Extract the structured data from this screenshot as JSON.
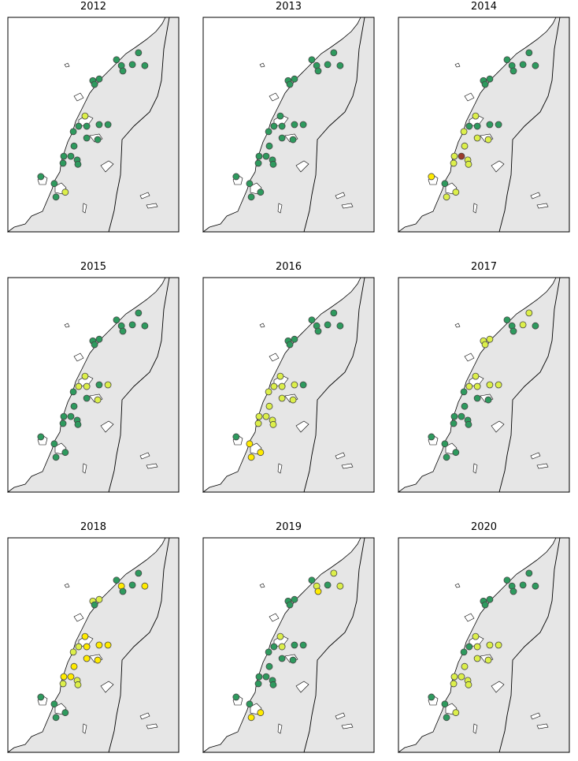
{
  "chart_data": [
    {
      "type": "map",
      "title": "2012",
      "xlim": [
        10,
        17
      ],
      "ylim": [
        64.5,
        68.5
      ],
      "lon": [
        15.35,
        14.45,
        15.1,
        14.65,
        15.61,
        14.71,
        13.48,
        13.74,
        13.55,
        13.16,
        13.23,
        12.9,
        13.74,
        14.1,
        12.68,
        13.23,
        13.68,
        12.71,
        12.29,
        12.58,
        12.84,
        12.26,
        12.87,
        11.35,
        11.9,
        12.35,
        11.97
      ],
      "lat": [
        67.84,
        67.71,
        67.62,
        67.6,
        67.6,
        67.5,
        67.32,
        67.35,
        67.25,
        66.66,
        66.47,
        66.47,
        66.5,
        66.5,
        66.37,
        66.25,
        66.22,
        66.1,
        65.91,
        65.91,
        65.84,
        65.78,
        65.76,
        65.53,
        65.4,
        65.24,
        65.15
      ],
      "colors": [
        "#2e9a5e",
        "#2e9a5e",
        "#2e9a5e",
        "#2e9a5e",
        "#2e9a5e",
        "#2e9a5e",
        "#2e9a5e",
        "#2e9a5e",
        "#2e9a5e",
        "#dcef4a",
        "#2e9a5e",
        "#2e9a5e",
        "#2e9a5e",
        "#2e9a5e",
        "#2e9a5e",
        "#2e9a5e",
        "#2e9a5e",
        "#2e9a5e",
        "#2e9a5e",
        "#2e9a5e",
        "#2e9a5e",
        "#2e9a5e",
        "#2e9a5e",
        "#2e9a5e",
        "#2e9a5e",
        "#dcef4a",
        "#2e9a5e"
      ]
    },
    {
      "type": "map",
      "title": "2013",
      "xlim": [
        10,
        17
      ],
      "ylim": [
        64.5,
        68.5
      ],
      "lon": [
        15.35,
        14.45,
        15.1,
        14.65,
        15.61,
        14.71,
        13.48,
        13.74,
        13.55,
        13.16,
        13.23,
        12.9,
        13.74,
        14.1,
        12.68,
        13.23,
        13.68,
        12.71,
        12.29,
        12.58,
        12.84,
        12.26,
        12.87,
        11.35,
        11.9,
        12.35,
        11.97
      ],
      "lat": [
        67.84,
        67.71,
        67.62,
        67.6,
        67.6,
        67.5,
        67.32,
        67.35,
        67.25,
        66.66,
        66.47,
        66.47,
        66.5,
        66.5,
        66.37,
        66.25,
        66.22,
        66.1,
        65.91,
        65.91,
        65.84,
        65.78,
        65.76,
        65.53,
        65.4,
        65.24,
        65.15
      ],
      "colors": [
        "#2e9a5e",
        "#2e9a5e",
        "#2e9a5e",
        "#2e9a5e",
        "#2e9a5e",
        "#2e9a5e",
        "#2e9a5e",
        "#2e9a5e",
        "#2e9a5e",
        "#2e9a5e",
        "#2e9a5e",
        "#2e9a5e",
        "#2e9a5e",
        "#2e9a5e",
        "#2e9a5e",
        "#2e9a5e",
        "#2e9a5e",
        "#2e9a5e",
        "#2e9a5e",
        "#2e9a5e",
        "#2e9a5e",
        "#2e9a5e",
        "#2e9a5e",
        "#2e9a5e",
        "#2e9a5e",
        "#2e9a5e",
        "#2e9a5e"
      ]
    },
    {
      "type": "map",
      "title": "2014",
      "xlim": [
        10,
        17
      ],
      "ylim": [
        64.5,
        68.5
      ],
      "lon": [
        15.35,
        14.45,
        15.1,
        14.65,
        15.61,
        14.71,
        13.48,
        13.74,
        13.55,
        13.16,
        13.23,
        12.9,
        13.74,
        14.1,
        12.68,
        13.23,
        13.68,
        12.71,
        12.29,
        12.58,
        12.84,
        12.26,
        12.87,
        11.35,
        11.9,
        12.35,
        11.97
      ],
      "lat": [
        67.84,
        67.71,
        67.62,
        67.6,
        67.6,
        67.5,
        67.32,
        67.35,
        67.25,
        66.66,
        66.47,
        66.47,
        66.5,
        66.5,
        66.37,
        66.25,
        66.22,
        66.1,
        65.91,
        65.91,
        65.84,
        65.78,
        65.76,
        65.53,
        65.4,
        65.24,
        65.15
      ],
      "colors": [
        "#2e9a5e",
        "#2e9a5e",
        "#2e9a5e",
        "#2e9a5e",
        "#2e9a5e",
        "#2e9a5e",
        "#2e9a5e",
        "#2e9a5e",
        "#2e9a5e",
        "#dcef4a",
        "#2e9a5e",
        "#2e9a5e",
        "#2e9a5e",
        "#2e9a5e",
        "#dcef4a",
        "#dcef4a",
        "#dcef4a",
        "#dcef4a",
        "#dcef4a",
        "#9b3b2a",
        "#dcef4a",
        "#dcef4a",
        "#dcef4a",
        "#ffeb00",
        "#2e9a5e",
        "#dcef4a",
        "#dcef4a"
      ]
    },
    {
      "type": "map",
      "title": "2015",
      "xlim": [
        10,
        17
      ],
      "ylim": [
        64.5,
        68.5
      ],
      "lon": [
        15.35,
        14.45,
        15.1,
        14.65,
        15.61,
        14.71,
        13.48,
        13.74,
        13.55,
        13.16,
        13.23,
        12.9,
        13.74,
        14.1,
        12.68,
        13.23,
        13.68,
        12.71,
        12.29,
        12.58,
        12.84,
        12.26,
        12.87,
        11.35,
        11.9,
        12.35,
        11.97
      ],
      "lat": [
        67.84,
        67.71,
        67.62,
        67.6,
        67.6,
        67.5,
        67.32,
        67.35,
        67.25,
        66.66,
        66.47,
        66.47,
        66.5,
        66.5,
        66.37,
        66.25,
        66.22,
        66.1,
        65.91,
        65.91,
        65.84,
        65.78,
        65.76,
        65.53,
        65.4,
        65.24,
        65.15
      ],
      "colors": [
        "#2e9a5e",
        "#2e9a5e",
        "#2e9a5e",
        "#2e9a5e",
        "#2e9a5e",
        "#2e9a5e",
        "#2e9a5e",
        "#2e9a5e",
        "#2e9a5e",
        "#dcef4a",
        "#dcef4a",
        "#dcef4a",
        "#2e9a5e",
        "#dcef4a",
        "#2e9a5e",
        "#2e9a5e",
        "#dcef4a",
        "#2e9a5e",
        "#2e9a5e",
        "#2e9a5e",
        "#2e9a5e",
        "#2e9a5e",
        "#2e9a5e",
        "#2e9a5e",
        "#2e9a5e",
        "#2e9a5e",
        "#2e9a5e"
      ]
    },
    {
      "type": "map",
      "title": "2016",
      "xlim": [
        10,
        17
      ],
      "ylim": [
        64.5,
        68.5
      ],
      "lon": [
        15.35,
        14.45,
        15.1,
        14.65,
        15.61,
        14.71,
        13.48,
        13.74,
        13.55,
        13.16,
        13.23,
        12.9,
        13.74,
        14.1,
        12.68,
        13.23,
        13.68,
        12.71,
        12.29,
        12.58,
        12.84,
        12.26,
        12.87,
        11.35,
        11.9,
        12.35,
        11.97
      ],
      "lat": [
        67.84,
        67.71,
        67.62,
        67.6,
        67.6,
        67.5,
        67.32,
        67.35,
        67.25,
        66.66,
        66.47,
        66.47,
        66.5,
        66.5,
        66.37,
        66.25,
        66.22,
        66.1,
        65.91,
        65.91,
        65.84,
        65.78,
        65.76,
        65.53,
        65.4,
        65.24,
        65.15
      ],
      "colors": [
        "#2e9a5e",
        "#2e9a5e",
        "#2e9a5e",
        "#2e9a5e",
        "#2e9a5e",
        "#2e9a5e",
        "#2e9a5e",
        "#2e9a5e",
        "#2e9a5e",
        "#dcef4a",
        "#dcef4a",
        "#dcef4a",
        "#dcef4a",
        "#2e9a5e",
        "#dcef4a",
        "#dcef4a",
        "#dcef4a",
        "#dcef4a",
        "#dcef4a",
        "#dcef4a",
        "#dcef4a",
        "#dcef4a",
        "#dcef4a",
        "#2e9a5e",
        "#ffeb00",
        "#ffeb00",
        "#ffeb00"
      ]
    },
    {
      "type": "map",
      "title": "2017",
      "xlim": [
        10,
        17
      ],
      "ylim": [
        64.5,
        68.5
      ],
      "lon": [
        15.35,
        14.45,
        15.1,
        14.65,
        15.61,
        14.71,
        13.48,
        13.74,
        13.55,
        13.16,
        13.23,
        12.9,
        13.74,
        14.1,
        12.68,
        13.23,
        13.68,
        12.71,
        12.29,
        12.58,
        12.84,
        12.26,
        12.87,
        11.35,
        11.9,
        12.35,
        11.97
      ],
      "lat": [
        67.84,
        67.71,
        67.62,
        67.6,
        67.6,
        67.5,
        67.32,
        67.35,
        67.25,
        66.66,
        66.47,
        66.47,
        66.5,
        66.5,
        66.37,
        66.25,
        66.22,
        66.1,
        65.91,
        65.91,
        65.84,
        65.78,
        65.76,
        65.53,
        65.4,
        65.24,
        65.15
      ],
      "colors": [
        "#dcef4a",
        "#2e9a5e",
        "#dcef4a",
        "#2e9a5e",
        "#2e9a5e",
        "#2e9a5e",
        "#dcef4a",
        "#dcef4a",
        "#dcef4a",
        "#dcef4a",
        "#dcef4a",
        "#dcef4a",
        "#dcef4a",
        "#dcef4a",
        "#2e9a5e",
        "#2e9a5e",
        "#2e9a5e",
        "#2e9a5e",
        "#2e9a5e",
        "#2e9a5e",
        "#2e9a5e",
        "#2e9a5e",
        "#2e9a5e",
        "#2e9a5e",
        "#2e9a5e",
        "#2e9a5e",
        "#2e9a5e"
      ]
    },
    {
      "type": "map",
      "title": "2018",
      "xlim": [
        10,
        17
      ],
      "ylim": [
        64.5,
        68.5
      ],
      "lon": [
        15.35,
        14.45,
        15.1,
        14.65,
        15.61,
        14.71,
        13.48,
        13.74,
        13.55,
        13.16,
        13.23,
        12.9,
        13.74,
        14.1,
        12.68,
        13.23,
        13.68,
        12.71,
        12.29,
        12.58,
        12.84,
        12.26,
        12.87,
        11.35,
        11.9,
        12.35,
        11.97
      ],
      "lat": [
        67.84,
        67.71,
        67.62,
        67.6,
        67.6,
        67.5,
        67.32,
        67.35,
        67.25,
        66.66,
        66.47,
        66.47,
        66.5,
        66.5,
        66.37,
        66.25,
        66.22,
        66.1,
        65.91,
        65.91,
        65.84,
        65.78,
        65.76,
        65.53,
        65.4,
        65.24,
        65.15
      ],
      "colors": [
        "#2e9a5e",
        "#2e9a5e",
        "#2e9a5e",
        "#ffeb00",
        "#ffeb00",
        "#2e9a5e",
        "#dcef4a",
        "#dcef4a",
        "#2e9a5e",
        "#ffeb00",
        "#ffeb00",
        "#dcef4a",
        "#ffeb00",
        "#ffeb00",
        "#dcef4a",
        "#ffeb00",
        "#ffeb00",
        "#ffeb00",
        "#ffeb00",
        "#ffeb00",
        "#dcef4a",
        "#dcef4a",
        "#dcef4a",
        "#2e9a5e",
        "#2e9a5e",
        "#2e9a5e",
        "#2e9a5e"
      ]
    },
    {
      "type": "map",
      "title": "2019",
      "xlim": [
        10,
        17
      ],
      "ylim": [
        64.5,
        68.5
      ],
      "lon": [
        15.35,
        14.45,
        15.1,
        14.65,
        15.61,
        14.71,
        13.48,
        13.74,
        13.55,
        13.16,
        13.23,
        12.9,
        13.74,
        14.1,
        12.68,
        13.23,
        13.68,
        12.71,
        12.29,
        12.58,
        12.84,
        12.26,
        12.87,
        11.35,
        11.9,
        12.35,
        11.97
      ],
      "lat": [
        67.84,
        67.71,
        67.62,
        67.6,
        67.6,
        67.5,
        67.32,
        67.35,
        67.25,
        66.66,
        66.47,
        66.47,
        66.5,
        66.5,
        66.37,
        66.25,
        66.22,
        66.1,
        65.91,
        65.91,
        65.84,
        65.78,
        65.76,
        65.53,
        65.4,
        65.24,
        65.15
      ],
      "colors": [
        "#dcef4a",
        "#2e9a5e",
        "#2e9a5e",
        "#dcef4a",
        "#dcef4a",
        "#ffeb00",
        "#2e9a5e",
        "#2e9a5e",
        "#2e9a5e",
        "#dcef4a",
        "#dcef4a",
        "#2e9a5e",
        "#2e9a5e",
        "#2e9a5e",
        "#2e9a5e",
        "#2e9a5e",
        "#2e9a5e",
        "#2e9a5e",
        "#2e9a5e",
        "#2e9a5e",
        "#2e9a5e",
        "#2e9a5e",
        "#2e9a5e",
        "#2e9a5e",
        "#2e9a5e",
        "#ffeb00",
        "#ffeb00"
      ]
    },
    {
      "type": "map",
      "title": "2020",
      "xlim": [
        10,
        17
      ],
      "ylim": [
        64.5,
        68.5
      ],
      "lon": [
        15.35,
        14.45,
        15.1,
        14.65,
        15.61,
        14.71,
        13.48,
        13.74,
        13.55,
        13.16,
        13.23,
        12.9,
        13.74,
        14.1,
        12.68,
        13.23,
        13.68,
        12.71,
        12.29,
        12.58,
        12.84,
        12.26,
        12.87,
        11.35,
        11.9,
        12.35,
        11.97
      ],
      "lat": [
        67.84,
        67.71,
        67.62,
        67.6,
        67.6,
        67.5,
        67.32,
        67.35,
        67.25,
        66.66,
        66.47,
        66.47,
        66.5,
        66.5,
        66.37,
        66.25,
        66.22,
        66.1,
        65.91,
        65.91,
        65.84,
        65.78,
        65.76,
        65.53,
        65.4,
        65.24,
        65.15
      ],
      "colors": [
        "#2e9a5e",
        "#2e9a5e",
        "#2e9a5e",
        "#2e9a5e",
        "#2e9a5e",
        "#2e9a5e",
        "#2e9a5e",
        "#2e9a5e",
        "#2e9a5e",
        "#dcef4a",
        "#dcef4a",
        "#2e9a5e",
        "#dcef4a",
        "#dcef4a",
        "#2e9a5e",
        "#dcef4a",
        "#dcef4a",
        "#dcef4a",
        "#dcef4a",
        "#dcef4a",
        "#dcef4a",
        "#dcef4a",
        "#dcef4a",
        "#2e9a5e",
        "#2e9a5e",
        "#dcef4a",
        "#2e9a5e"
      ]
    }
  ]
}
